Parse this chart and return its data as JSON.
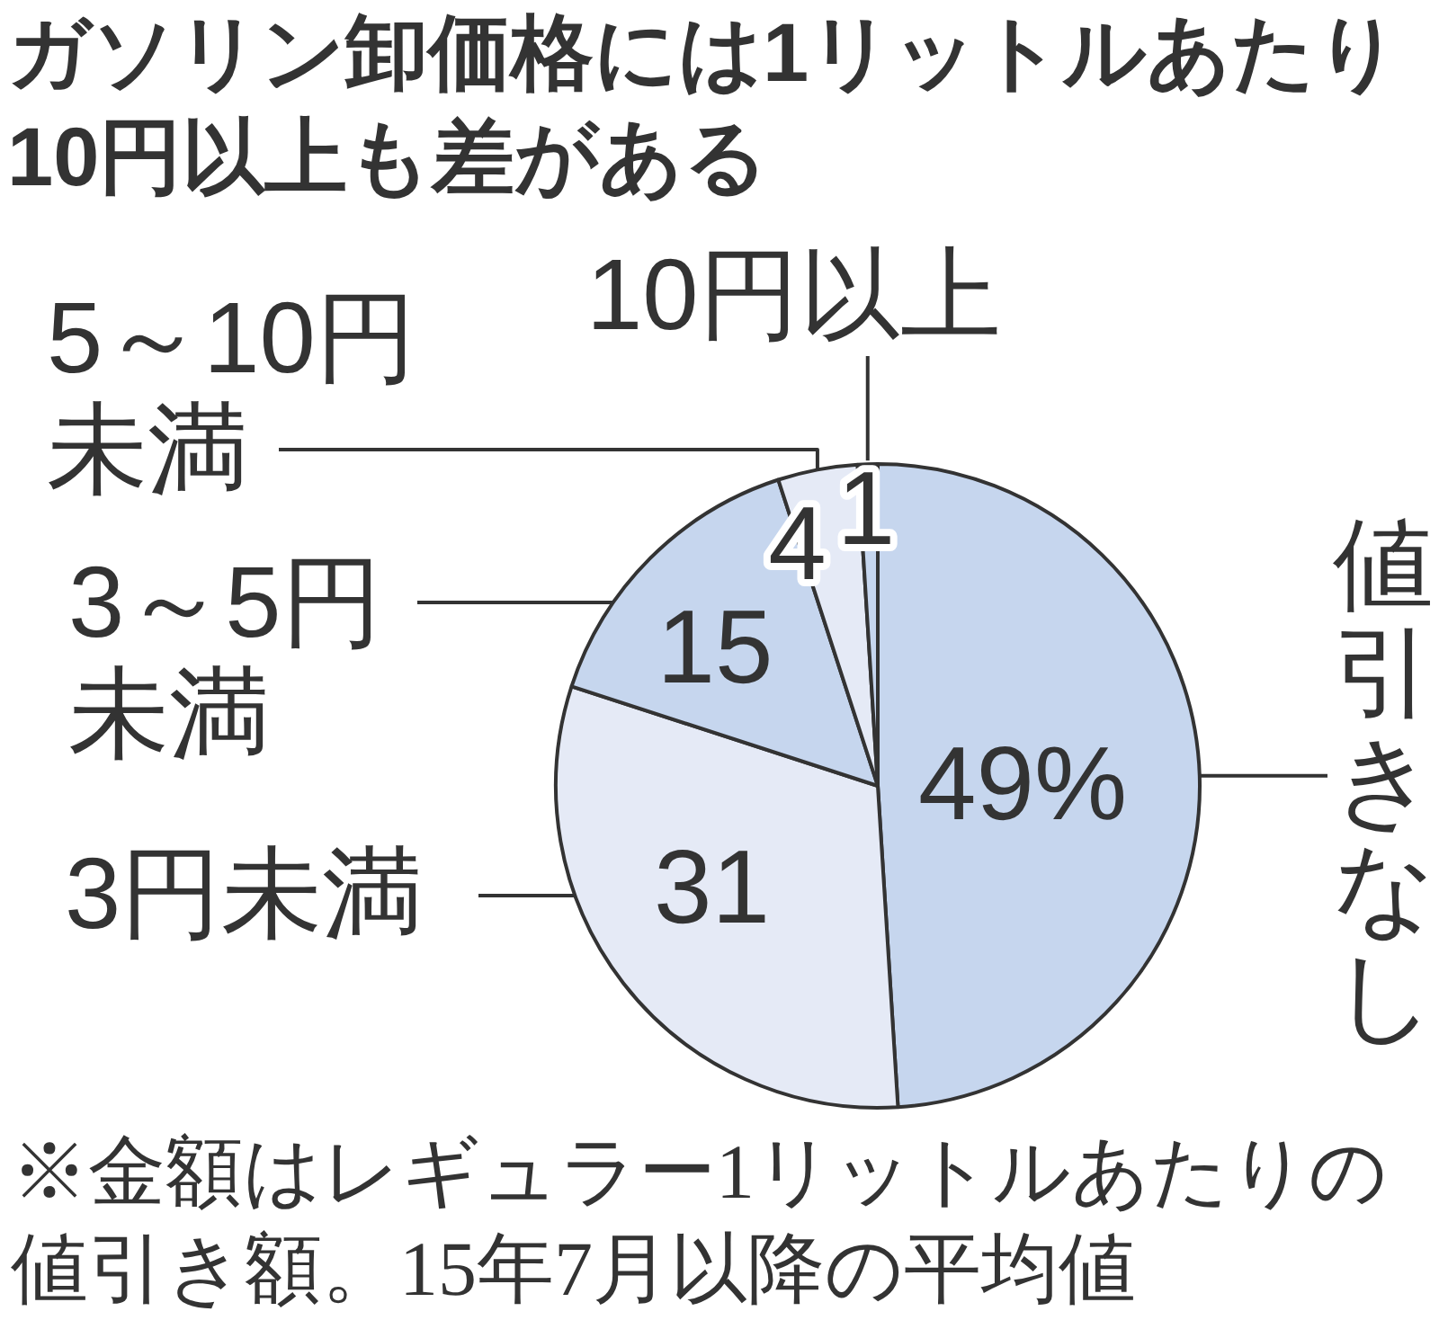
{
  "chart_data": {
    "type": "pie",
    "title": "ガソリン卸価格には1リットルあたり10円以上も差がある",
    "categories": [
      "値引きなし",
      "3円未満",
      "3～5円未満",
      "5～10円未満",
      "10円以上"
    ],
    "values": [
      49,
      31,
      15,
      4,
      1
    ],
    "colors": [
      "#c6d6ee",
      "#e5eaf6",
      "#c6d6ee",
      "#e5eaf6",
      "#c6d6ee"
    ],
    "value_labels": [
      "49%",
      "31",
      "15",
      "4",
      "1"
    ],
    "annotations": [
      "※金額はレギュラー1リットルあたりの値引き額。15年7月以降の平均値"
    ]
  }
}
